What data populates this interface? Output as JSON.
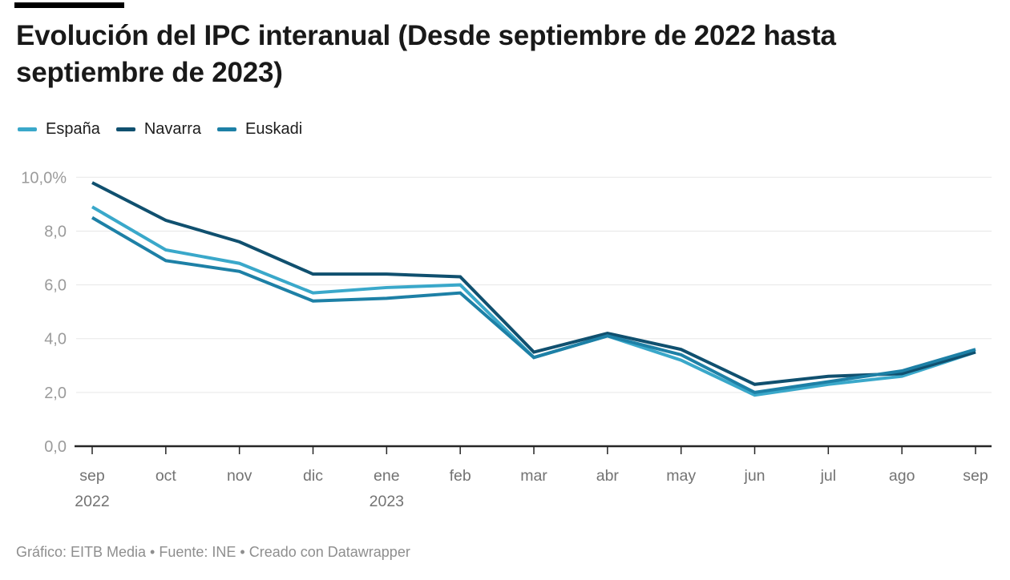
{
  "header": {
    "title": "Evolución del IPC interanual (Desde septiembre de 2022 hasta septiembre de 2023)"
  },
  "footer": {
    "text": "Gráfico: EITB Media • Fuente: INE • Creado con Datawrapper"
  },
  "chart_data": {
    "type": "line",
    "title": "Evolución del IPC interanual (Desde septiembre de 2022 hasta septiembre de 2023)",
    "categories": [
      "sep",
      "oct",
      "nov",
      "dic",
      "ene",
      "feb",
      "mar",
      "abr",
      "may",
      "jun",
      "jul",
      "ago",
      "sep"
    ],
    "x_secondary_labels": [
      {
        "index": 0,
        "label": "2022"
      },
      {
        "index": 4,
        "label": "2023"
      }
    ],
    "series": [
      {
        "name": "España",
        "color": "#3aa8ca",
        "values": [
          8.9,
          7.3,
          6.8,
          5.7,
          5.9,
          6.0,
          3.3,
          4.1,
          3.2,
          1.9,
          2.3,
          2.6,
          3.5
        ]
      },
      {
        "name": "Navarra",
        "color": "#10506f",
        "values": [
          9.8,
          8.4,
          7.6,
          6.4,
          6.4,
          6.3,
          3.5,
          4.2,
          3.6,
          2.3,
          2.6,
          2.7,
          3.5
        ]
      },
      {
        "name": "Euskadi",
        "color": "#1d80a6",
        "values": [
          8.5,
          6.9,
          6.5,
          5.4,
          5.5,
          5.7,
          3.3,
          4.1,
          3.4,
          2.0,
          2.4,
          2.8,
          3.6
        ]
      }
    ],
    "yticks": [
      {
        "value": 10,
        "label": "10,0%"
      },
      {
        "value": 8,
        "label": "8,0"
      },
      {
        "value": 6,
        "label": "6,0"
      },
      {
        "value": 4,
        "label": "4,0"
      },
      {
        "value": 2,
        "label": "2,0"
      },
      {
        "value": 0,
        "label": "0,0"
      }
    ],
    "ylim": [
      0,
      10
    ],
    "grid": "horizontal",
    "legend_position": "top"
  }
}
